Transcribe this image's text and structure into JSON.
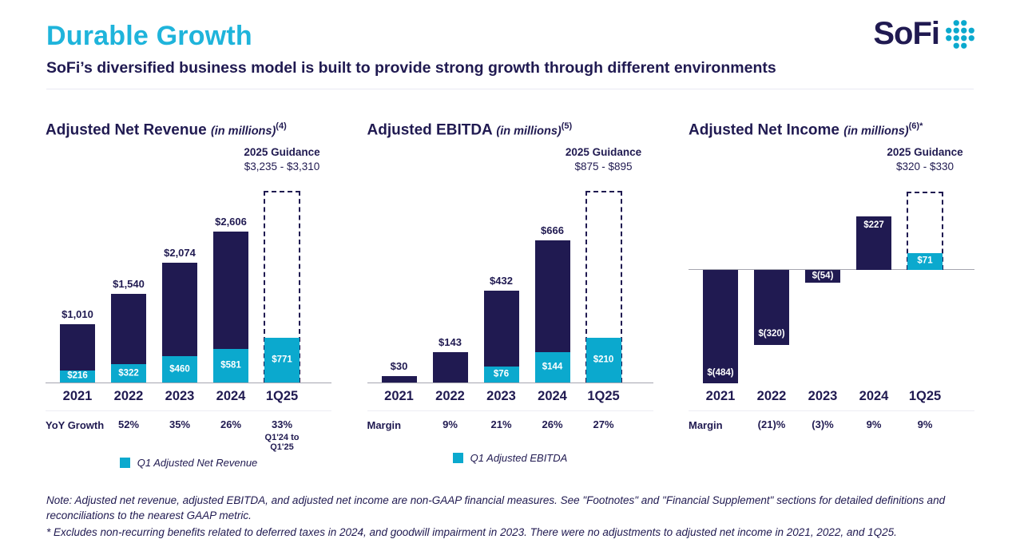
{
  "header": {
    "title": "Durable Growth",
    "subtitle": "SoFi’s diversified business model is built to provide strong growth through different environments",
    "logo_text": "SoFi"
  },
  "colors": {
    "title_cyan": "#1FB4DB",
    "accent_cyan": "#0BA9CE",
    "navy": "#201A51",
    "axis_gray": "#A5A5B0"
  },
  "chart_data": [
    {
      "type": "bar",
      "mode": "stacked",
      "title": "Adjusted Net Revenue",
      "unit_note": "(in millions)",
      "superscript": "(4)",
      "ylim": [
        0,
        3310
      ],
      "grid": false,
      "guidance": {
        "label": "2025 Guidance",
        "range": "$3,235 - $3,310",
        "top_value": 3310
      },
      "categories": [
        "2021",
        "2022",
        "2023",
        "2024",
        "1Q25"
      ],
      "bars": [
        {
          "category": "2021",
          "total": 1010,
          "total_label": "$1,010",
          "q1": 216,
          "q1_label": "$216"
        },
        {
          "category": "2022",
          "total": 1540,
          "total_label": "$1,540",
          "q1": 322,
          "q1_label": "$322"
        },
        {
          "category": "2023",
          "total": 2074,
          "total_label": "$2,074",
          "q1": 460,
          "q1_label": "$460"
        },
        {
          "category": "2024",
          "total": 2606,
          "total_label": "$2,606",
          "q1": 581,
          "q1_label": "$581"
        },
        {
          "category": "1Q25",
          "q1": 771,
          "q1_label": "$771",
          "guidance_box": true
        }
      ],
      "stats_row": {
        "label": "YoY Growth",
        "values": [
          "52%",
          "35%",
          "26%",
          "33%"
        ],
        "last_sub": "Q1'24 to Q1'25"
      },
      "legend": "Q1 Adjusted Net Revenue"
    },
    {
      "type": "bar",
      "mode": "stacked",
      "title": "Adjusted EBITDA",
      "unit_note": "(in millions)",
      "superscript": "(5)",
      "ylim": [
        0,
        895
      ],
      "grid": false,
      "guidance": {
        "label": "2025 Guidance",
        "range": "$875 - $895",
        "top_value": 895
      },
      "categories": [
        "2021",
        "2022",
        "2023",
        "2024",
        "1Q25"
      ],
      "bars": [
        {
          "category": "2021",
          "total": 30,
          "total_label": "$30"
        },
        {
          "category": "2022",
          "total": 143,
          "total_label": "$143"
        },
        {
          "category": "2023",
          "total": 432,
          "total_label": "$432",
          "q1": 76,
          "q1_label": "$76"
        },
        {
          "category": "2024",
          "total": 666,
          "total_label": "$666",
          "q1": 144,
          "q1_label": "$144"
        },
        {
          "category": "1Q25",
          "q1": 210,
          "q1_label": "$210",
          "guidance_box": true
        }
      ],
      "stats_row": {
        "label": "Margin",
        "values": [
          "9%",
          "21%",
          "26%",
          "27%"
        ]
      },
      "legend": "Q1 Adjusted EBITDA"
    },
    {
      "type": "bar",
      "mode": "signed",
      "title": "Adjusted Net Income",
      "unit_note": "(in millions)",
      "superscript": "(6)*",
      "ylim": [
        -484,
        330
      ],
      "grid": false,
      "guidance": {
        "label": "2025 Guidance",
        "range": "$320 - $330",
        "top_value": 330
      },
      "categories": [
        "2021",
        "2022",
        "2023",
        "2024",
        "1Q25"
      ],
      "bars": [
        {
          "category": "2021",
          "value": -484,
          "label": "$(484)"
        },
        {
          "category": "2022",
          "value": -320,
          "label": "$(320)"
        },
        {
          "category": "2023",
          "value": -54,
          "label": "$(54)"
        },
        {
          "category": "2024",
          "value": 227,
          "label": "$227"
        },
        {
          "category": "1Q25",
          "value": 71,
          "label": "$71",
          "q1": true,
          "guidance_box": true
        }
      ],
      "stats_row": {
        "label": "Margin",
        "values": [
          "(21)%",
          "(3)%",
          "9%",
          "9%"
        ]
      },
      "legend": null
    }
  ],
  "footer": {
    "note": "Note: Adjusted net revenue, adjusted EBITDA, and adjusted net income are non-GAAP financial measures. See \"Footnotes\" and \"Financial Supplement\" sections for detailed definitions and reconciliations to the nearest GAAP metric.",
    "asterisk_note": "* Excludes non-recurring benefits related to deferred taxes in 2024, and goodwill impairment in 2023. There were no adjustments to adjusted net income in 2021, 2022, and 1Q25."
  }
}
